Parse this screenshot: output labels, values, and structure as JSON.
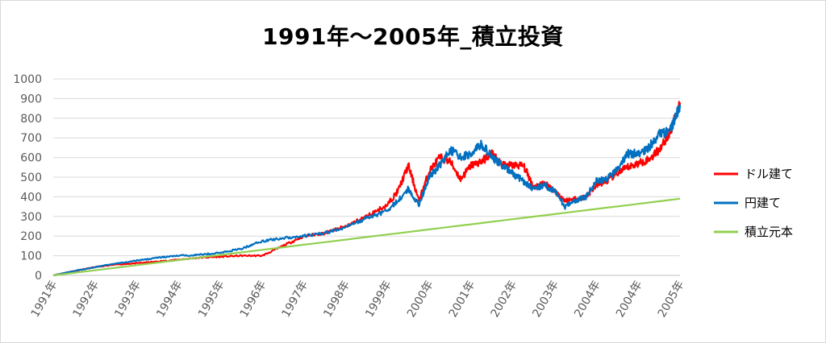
{
  "chart_data": {
    "type": "line",
    "title": "1991年～2005年_積立投資",
    "xlabel": "",
    "ylabel": "",
    "ylim": [
      0,
      1000
    ],
    "yticks": [
      0,
      100,
      200,
      300,
      400,
      500,
      600,
      700,
      800,
      900,
      1000
    ],
    "x_tick_labels": [
      "1991年",
      "1992年",
      "1993年",
      "1994年",
      "1995年",
      "1996年",
      "1997年",
      "1998年",
      "1999年",
      "2000年",
      "2001年",
      "2002年",
      "2003年",
      "2004年",
      "2004年",
      "2005年"
    ],
    "grid": "horizontal",
    "legend_position": "right",
    "x": [
      0,
      0.5,
      1,
      1.5,
      2,
      2.5,
      3,
      3.5,
      4,
      4.5,
      5,
      5.5,
      6,
      6.5,
      7,
      7.5,
      8,
      8.25,
      8.5,
      8.75,
      9,
      9.25,
      9.5,
      9.75,
      10,
      10.25,
      10.5,
      10.75,
      11,
      11.25,
      11.5,
      11.75,
      12,
      12.25,
      12.5,
      12.75,
      13,
      13.25,
      13.5,
      13.75,
      14,
      14.25,
      14.5,
      14.75,
      15
    ],
    "series": [
      {
        "name": "ドル建て",
        "color": "#ff0000",
        "values": [
          0,
          22,
          42,
          55,
          62,
          70,
          80,
          90,
          95,
          100,
          100,
          150,
          200,
          215,
          250,
          300,
          360,
          430,
          560,
          380,
          530,
          600,
          580,
          490,
          560,
          580,
          620,
          560,
          560,
          560,
          450,
          470,
          430,
          380,
          390,
          400,
          460,
          480,
          520,
          550,
          570,
          590,
          640,
          720,
          880
        ]
      },
      {
        "name": "円建て",
        "color": "#0070c0",
        "values": [
          0,
          22,
          42,
          60,
          75,
          90,
          100,
          105,
          115,
          135,
          175,
          190,
          200,
          215,
          245,
          290,
          330,
          380,
          440,
          360,
          500,
          560,
          640,
          600,
          620,
          670,
          600,
          560,
          520,
          480,
          440,
          460,
          430,
          350,
          380,
          400,
          480,
          490,
          540,
          620,
          620,
          650,
          720,
          730,
          870
        ]
      },
      {
        "name": "積立元本",
        "color": "#92d050",
        "values": [
          0,
          13,
          26,
          39,
          52,
          65,
          78,
          91,
          104,
          117,
          130,
          143,
          156,
          169,
          182,
          195,
          208,
          214.5,
          221,
          227.5,
          234,
          240.5,
          247,
          253.5,
          260,
          266.5,
          273,
          279.5,
          286,
          292.5,
          299,
          305.5,
          312,
          318.5,
          325,
          331.5,
          338,
          344.5,
          351,
          357.5,
          364,
          370.5,
          377,
          383.5,
          390
        ]
      }
    ]
  }
}
